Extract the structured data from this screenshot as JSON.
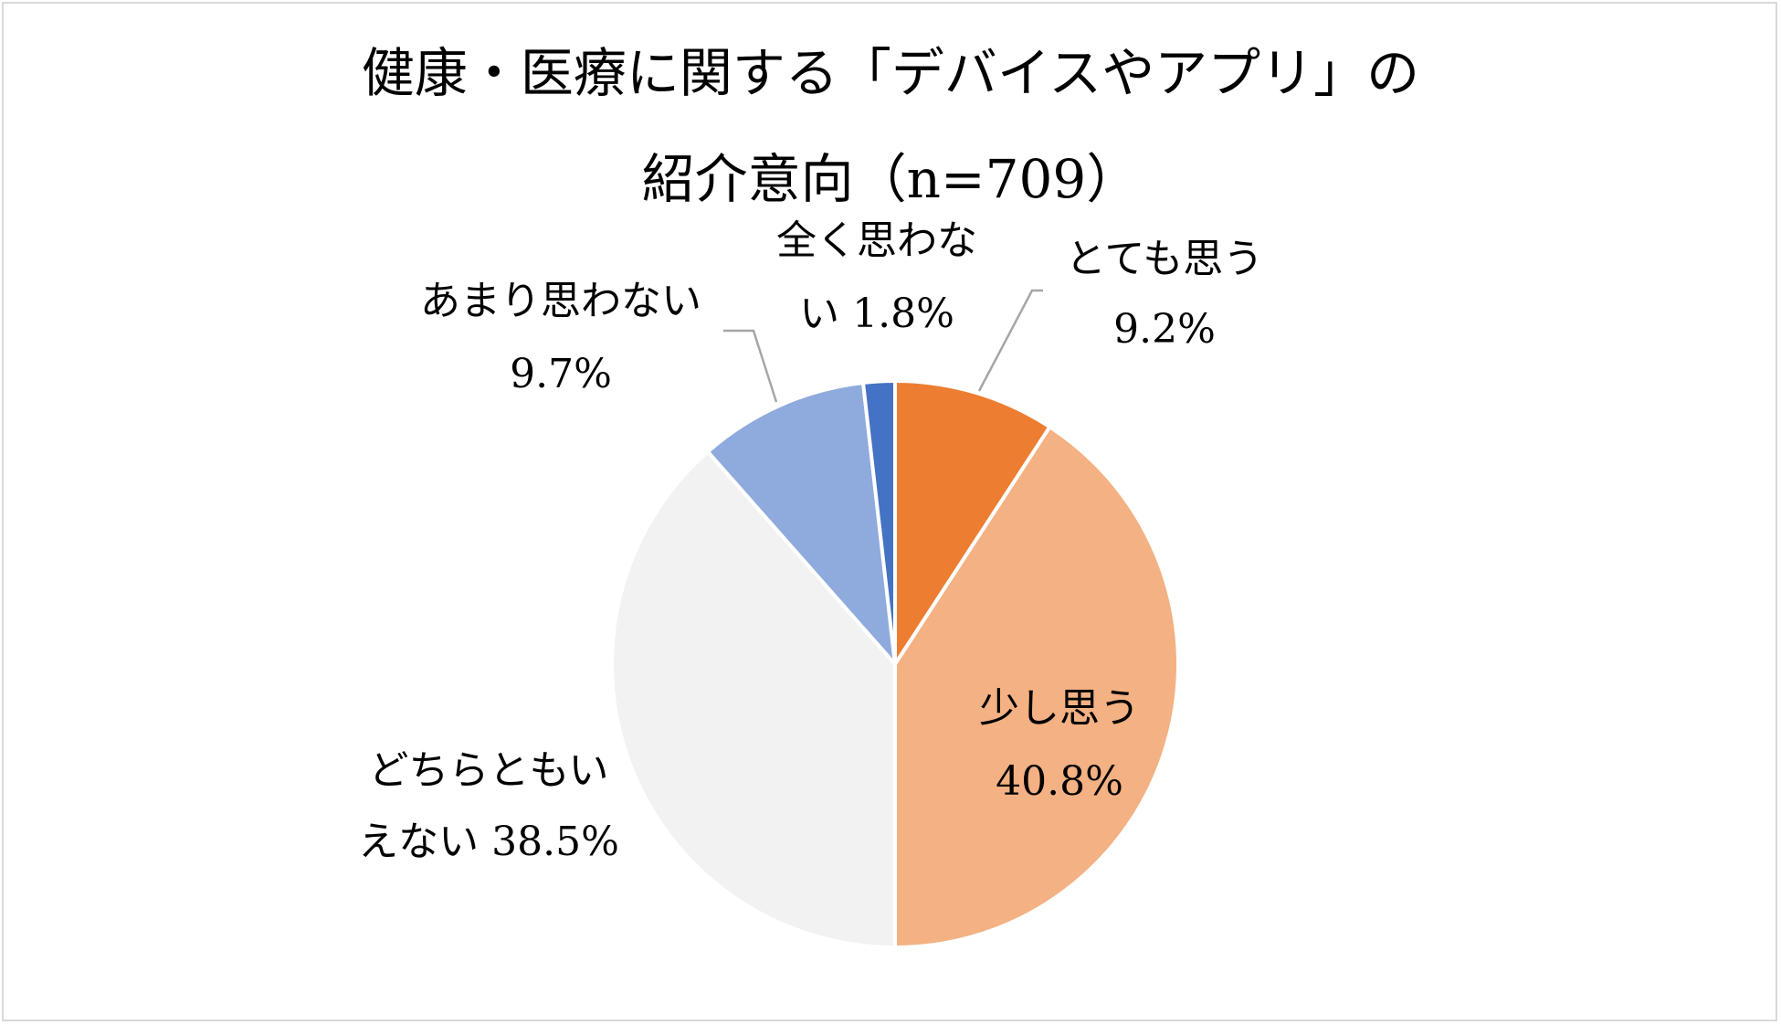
{
  "chart_data": {
    "type": "pie",
    "title_lines": [
      "健康・医療に関する「デバイスやアプリ」の",
      "紹介意向（n=709）"
    ],
    "categories": [
      "とても思う",
      "少し思う",
      "どちらともいえない",
      "あまり思わない",
      "全く思わない"
    ],
    "values": [
      9.2,
      40.8,
      38.5,
      9.7,
      1.8
    ],
    "unit": "%",
    "colors": [
      "#ED7D31",
      "#F4B183",
      "#F2F2F2",
      "#8FAADC",
      "#4472C4"
    ],
    "data_labels": [
      [
        "とても思う",
        "9.2%"
      ],
      [
        "少し思う",
        "40.8%"
      ],
      [
        "どちらともい",
        "えない 38.5%"
      ],
      [
        "あまり思わない",
        "9.7%"
      ],
      [
        "全く思わな",
        "い 1.8%"
      ]
    ],
    "start_angle": "12 o'clock",
    "direction": "clockwise",
    "legend": "none"
  }
}
